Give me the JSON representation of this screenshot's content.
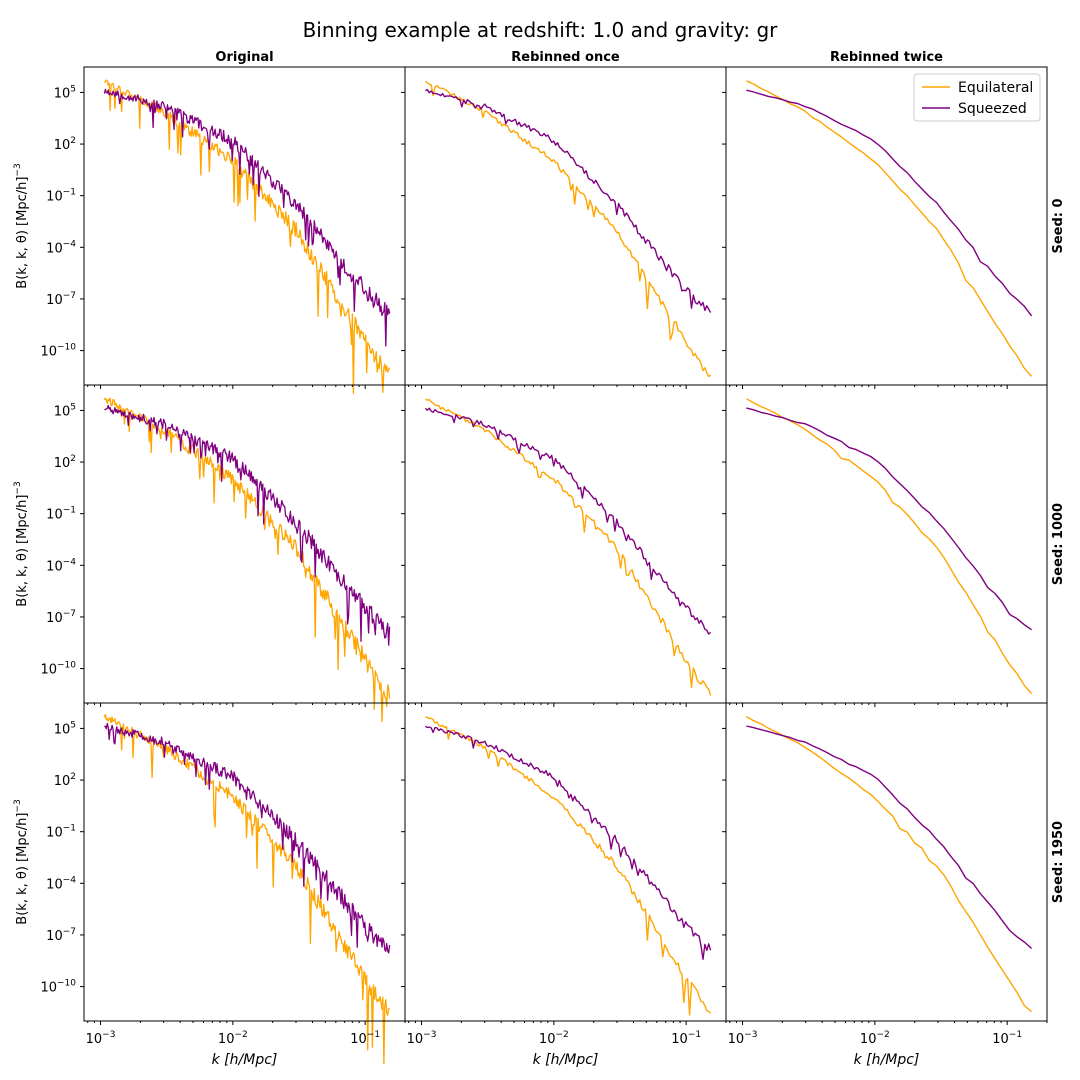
{
  "figure": {
    "suptitle": "Binning example at redshift: 1.0 and gravity: gr",
    "column_titles": [
      "Original",
      "Rebinned once",
      "Rebinned twice"
    ],
    "row_labels": [
      "Seed: 0",
      "Seed: 1000",
      "Seed: 1950"
    ],
    "ylabel": "B(k, k, θ) [Mpc/h]",
    "ylabel_exponent": "−3",
    "xlabel": "k [h/Mpc]",
    "colors": {
      "Equilateral": "#ffa500",
      "Squeezed": "#800080"
    },
    "legend": {
      "entries": [
        "Equilateral",
        "Squeezed"
      ],
      "placement": "top-right of top-right panel"
    }
  },
  "chart_data": {
    "type": "line",
    "layout": "3x3 grid, rows = seeds, columns = binning level, shared log axes",
    "xscale": "log",
    "yscale": "log",
    "xlim": [
      0.00075,
      0.2
    ],
    "ylim": [
      1e-12,
      3000000.0
    ],
    "xticks": [
      "10−3",
      "10−2",
      "10−1"
    ],
    "yticks": [
      "10−10",
      "10−7",
      "10−4",
      "10−1",
      "102",
      "105"
    ],
    "grid": false,
    "k_range": [
      0.00107,
      0.153
    ],
    "binning": [
      {
        "column": "Original",
        "points": 300
      },
      {
        "column": "Rebinned once",
        "points": 150
      },
      {
        "column": "Rebinned twice",
        "points": 40
      }
    ],
    "series": [
      {
        "name": "Equilateral",
        "description": "approximate log10 B at sampled k; original resolution shows strong noise spikes",
        "k": [
          0.001,
          0.003,
          0.01,
          0.03,
          0.1,
          0.15
        ],
        "B_log10": [
          5.8,
          3.9,
          1.0,
          -3.0,
          -9.5,
          -11.5
        ]
      },
      {
        "name": "Squeezed",
        "description": "approximate log10 B at sampled k",
        "k": [
          0.001,
          0.003,
          0.01,
          0.03,
          0.1,
          0.15
        ],
        "B_log10": [
          5.2,
          4.2,
          2.2,
          -1.5,
          -6.5,
          -7.8
        ]
      }
    ]
  }
}
